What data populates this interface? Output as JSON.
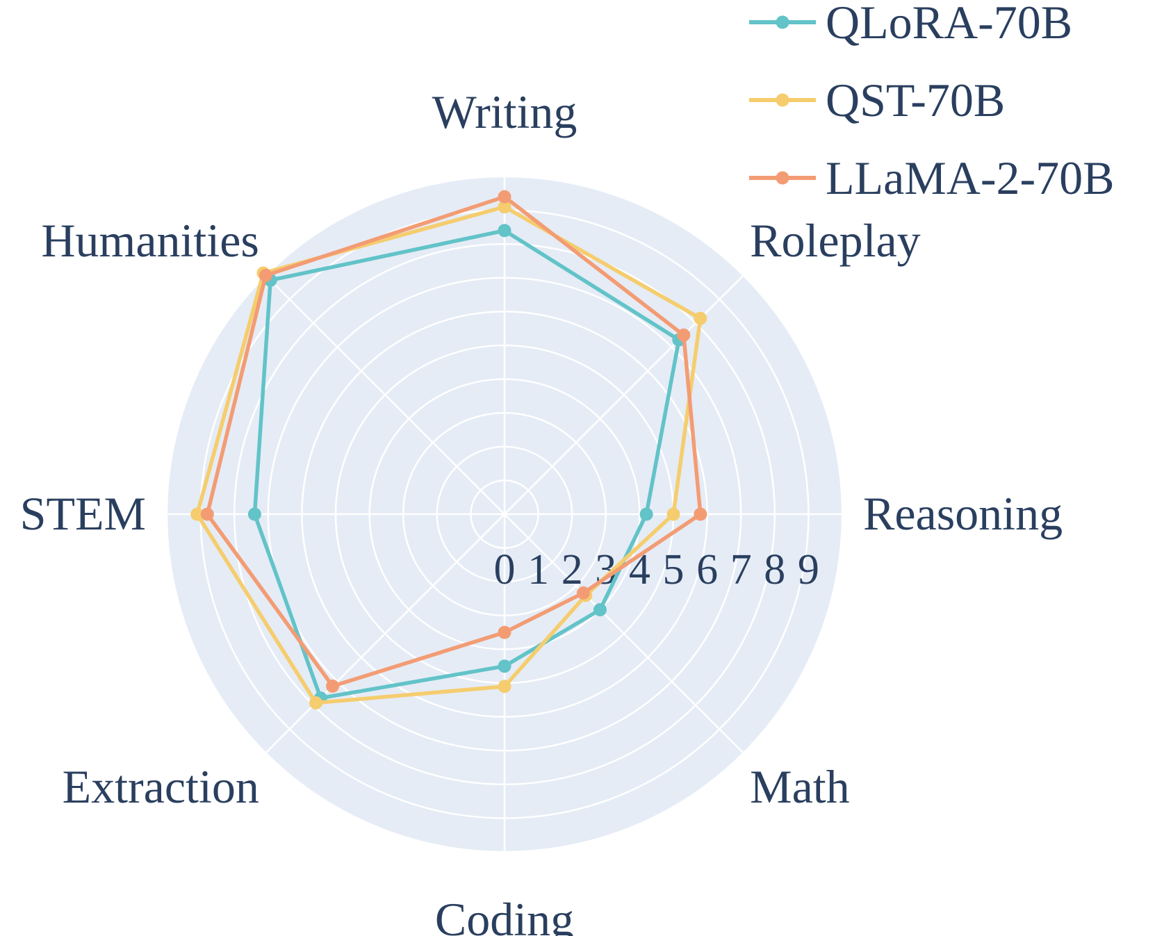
{
  "chart_data": {
    "type": "radar",
    "title": "",
    "categories": [
      "Writing",
      "Roleplay",
      "Reasoning",
      "Math",
      "Coding",
      "Extraction",
      "STEM",
      "Humanities"
    ],
    "radial_range": [
      0,
      10
    ],
    "ticks": [
      "0",
      "1",
      "2",
      "3",
      "4",
      "5",
      "6",
      "7",
      "8",
      "9"
    ],
    "grid": true,
    "legend_position": "top-right",
    "background_color": "#e5ecf6",
    "gridline_color": "#ffffff",
    "text_color": "#2a3f5f",
    "series": [
      {
        "name": "QLoRA-70B",
        "color": "#62c3c8",
        "values": [
          8.4,
          7.3,
          4.2,
          4.0,
          4.5,
          7.7,
          7.4,
          9.8
        ]
      },
      {
        "name": "QST-70B",
        "color": "#f5cd6e",
        "values": [
          9.1,
          8.2,
          5.0,
          3.4,
          5.1,
          7.9,
          9.1,
          10.1
        ]
      },
      {
        "name": "LLaMA-2-70B",
        "color": "#f39c74",
        "values": [
          9.4,
          7.5,
          5.8,
          3.3,
          3.5,
          7.2,
          8.8,
          10.0
        ]
      }
    ]
  }
}
